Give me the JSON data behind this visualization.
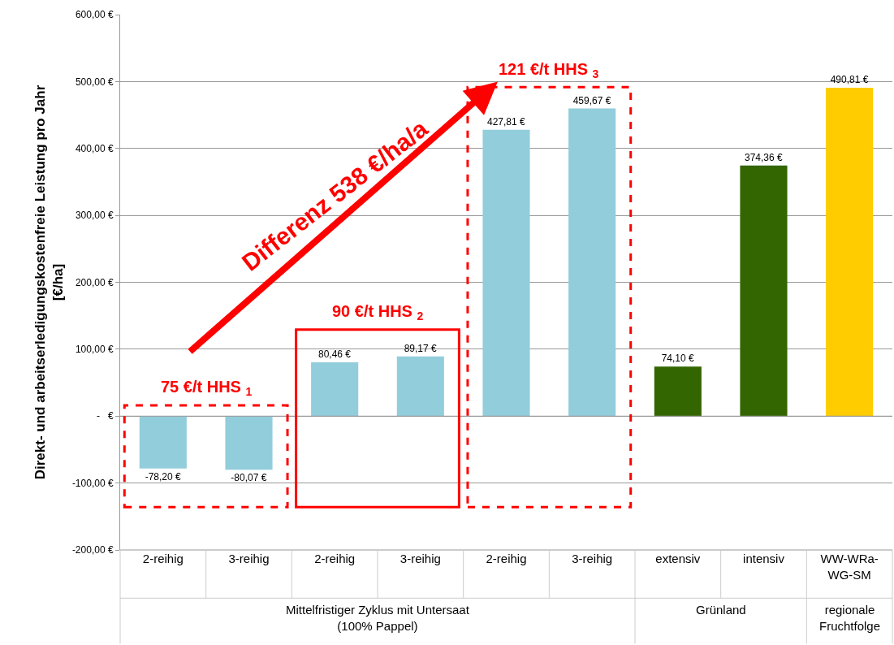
{
  "chart_data": {
    "type": "bar",
    "ylabel": "Direkt- und arbeitserledigungskostenfreie Leistung pro Jahr\n[€/ha]",
    "categories": [
      "2-reihig",
      "3-reihig",
      "2-reihig",
      "3-reihig",
      "2-reihig",
      "3-reihig",
      "extensiv",
      "intensiv",
      "WW-WRa-\nWG-SM"
    ],
    "values": [
      -78.2,
      -80.07,
      80.46,
      89.17,
      427.81,
      459.67,
      74.1,
      374.36,
      490.81
    ],
    "colors": [
      "#92cddc",
      "#92cddc",
      "#92cddc",
      "#92cddc",
      "#92cddc",
      "#92cddc",
      "#336600",
      "#336600",
      "#ffcc00"
    ],
    "value_labels": [
      "-78,20 €",
      "-80,07 €",
      "80,46 €",
      "89,17 €",
      "427,81 €",
      "459,67 €",
      "74,10 €",
      "374,36 €",
      "490,81 €"
    ],
    "ylim": [
      -200,
      600
    ],
    "yticks": [
      {
        "value": -200,
        "label": "-200,00 €"
      },
      {
        "value": -100,
        "label": "-100,00 €"
      },
      {
        "value": 0,
        "label": "-   €"
      },
      {
        "value": 100,
        "label": "100,00 €"
      },
      {
        "value": 200,
        "label": "200,00 €"
      },
      {
        "value": 300,
        "label": "300,00 €"
      },
      {
        "value": 400,
        "label": "400,00 €"
      },
      {
        "value": 500,
        "label": "500,00 €"
      },
      {
        "value": 600,
        "label": "600,00 €"
      }
    ],
    "grid": "y",
    "annotations": [
      "75 €/t HHS $_{1}$",
      "90 €/t HHS $_{2}$",
      "121 €/t HHS $_{3}$",
      "Differenz 538 €/ha/a",
      "Mittelfristiger Zyklus mit Untersaat\n(100% Pappel)",
      "Grünland",
      "regionale\nFruchtfolge"
    ]
  }
}
